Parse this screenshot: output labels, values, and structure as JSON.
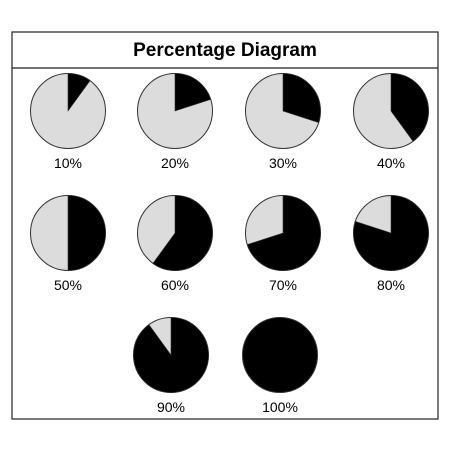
{
  "diagram": {
    "title": "Percentage Diagram",
    "colors": {
      "filled": "#000000",
      "empty": "#dcdcdc",
      "outline": "#333333",
      "frame": "#222222",
      "text": "#000000"
    },
    "items": [
      {
        "label": "10%",
        "value": 10
      },
      {
        "label": "20%",
        "value": 20
      },
      {
        "label": "30%",
        "value": 30
      },
      {
        "label": "40%",
        "value": 40
      },
      {
        "label": "50%",
        "value": 50
      },
      {
        "label": "60%",
        "value": 60
      },
      {
        "label": "70%",
        "value": 70
      },
      {
        "label": "80%",
        "value": 80
      },
      {
        "label": "90%",
        "value": 90
      },
      {
        "label": "100%",
        "value": 100
      }
    ]
  }
}
